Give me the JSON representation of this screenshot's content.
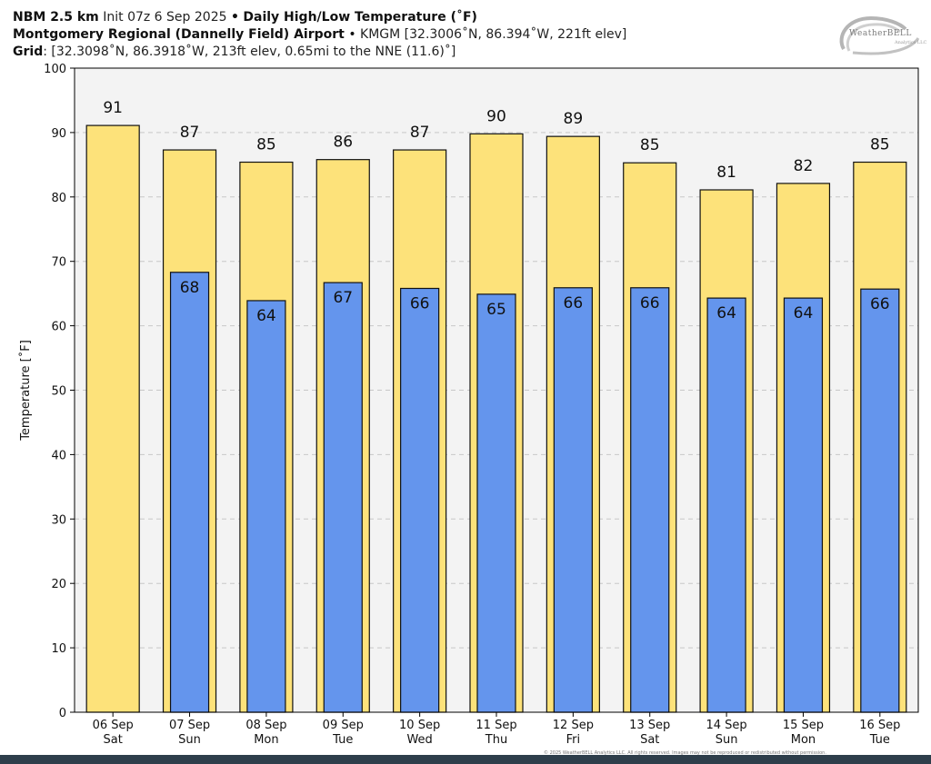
{
  "header": {
    "model": "NBM 2.5 km",
    "init": "Init 07z 6 Sep 2025",
    "separator": "•",
    "product": "Daily High/Low Temperature (˚F)",
    "station_name": "Montgomery Regional (Dannelly Field) Airport",
    "station_info": "KMGM [32.3006˚N, 86.394˚W, 221ft elev]",
    "grid_label": "Grid",
    "grid_info": ": [32.3098˚N, 86.3918˚W, 213ft elev, 0.65mi to the NNE (11.6)˚]"
  },
  "logo": {
    "text": "WeatherBELL",
    "sub": "Analytics LLC"
  },
  "copyright": "© 2025 WeatherBELL Analytics LLC. All rights reserved. Images may not be reproduced or redistributed without permission.",
  "colors": {
    "high": "#fde27a",
    "low": "#6495ed",
    "plot_bg": "#f3f3f3",
    "grid": "#c8c8c8",
    "bar_edge": "#111111"
  },
  "chart_data": {
    "type": "bar",
    "ylabel": "Temperature [˚F]",
    "ylim": [
      0,
      100
    ],
    "yticks": [
      0,
      10,
      20,
      30,
      40,
      50,
      60,
      70,
      80,
      90,
      100
    ],
    "grid": "horizontal dashed",
    "categories": [
      [
        "06 Sep",
        "Sat"
      ],
      [
        "07 Sep",
        "Sun"
      ],
      [
        "08 Sep",
        "Mon"
      ],
      [
        "09 Sep",
        "Tue"
      ],
      [
        "10 Sep",
        "Wed"
      ],
      [
        "11 Sep",
        "Thu"
      ],
      [
        "12 Sep",
        "Fri"
      ],
      [
        "13 Sep",
        "Sat"
      ],
      [
        "14 Sep",
        "Sun"
      ],
      [
        "15 Sep",
        "Mon"
      ],
      [
        "16 Sep",
        "Tue"
      ]
    ],
    "series": [
      {
        "key": "high",
        "values": [
          91.1,
          87.3,
          85.4,
          85.8,
          87.3,
          89.8,
          89.4,
          85.3,
          81.1,
          82.1,
          85.4
        ],
        "labels": [
          "91",
          "87",
          "85",
          "86",
          "87",
          "90",
          "89",
          "85",
          "81",
          "82",
          "85"
        ]
      },
      {
        "key": "low",
        "values": [
          null,
          68.3,
          63.9,
          66.7,
          65.8,
          64.9,
          65.9,
          65.9,
          64.3,
          64.3,
          65.7
        ],
        "labels": [
          "",
          "68",
          "64",
          "67",
          "66",
          "65",
          "66",
          "66",
          "64",
          "64",
          "66"
        ]
      }
    ]
  }
}
